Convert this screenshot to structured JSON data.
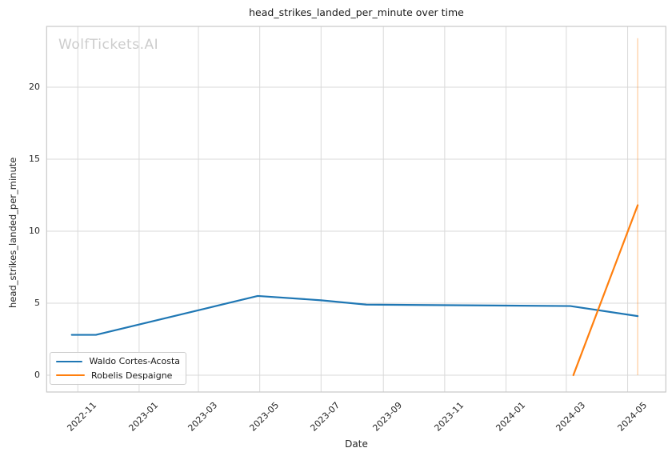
{
  "watermark": "WolfTickets.AI",
  "chart_data": {
    "type": "line",
    "title": "head_strikes_landed_per_minute over time",
    "xlabel": "Date",
    "ylabel": "head_strikes_landed_per_minute",
    "grid": true,
    "legend_position": "lower left",
    "x_ticks": [
      {
        "date": "2022-11-01",
        "label": "2022-11"
      },
      {
        "date": "2023-01-01",
        "label": "2023-01"
      },
      {
        "date": "2023-03-01",
        "label": "2023-03"
      },
      {
        "date": "2023-05-01",
        "label": "2023-05"
      },
      {
        "date": "2023-07-01",
        "label": "2023-07"
      },
      {
        "date": "2023-09-01",
        "label": "2023-09"
      },
      {
        "date": "2023-11-01",
        "label": "2023-11"
      },
      {
        "date": "2024-01-01",
        "label": "2024-01"
      },
      {
        "date": "2024-03-01",
        "label": "2024-03"
      },
      {
        "date": "2024-05-01",
        "label": "2024-05"
      }
    ],
    "y_ticks": [
      0,
      5,
      10,
      15,
      20
    ],
    "xlim": [
      "2022-10-01",
      "2024-06-08"
    ],
    "ylim": [
      -1.17,
      24.22
    ],
    "series": [
      {
        "name": "Waldo Cortes-Acosta",
        "color": "#1f77b4",
        "points": [
          {
            "date": "2022-10-26",
            "value": 2.8
          },
          {
            "date": "2022-11-19",
            "value": 2.8
          },
          {
            "date": "2023-04-29",
            "value": 5.5
          },
          {
            "date": "2023-07-01",
            "value": 5.2
          },
          {
            "date": "2023-08-15",
            "value": 4.9
          },
          {
            "date": "2024-03-05",
            "value": 4.8
          },
          {
            "date": "2024-05-11",
            "value": 4.1
          }
        ]
      },
      {
        "name": "Robelis Despaigne",
        "color": "#ff7f0e",
        "points": [
          {
            "date": "2024-03-08",
            "value": 0.0
          },
          {
            "date": "2024-05-11",
            "value": 11.8
          }
        ]
      }
    ],
    "event_line": {
      "date": "2024-05-11",
      "from": 0.0,
      "to": 23.4,
      "color": "#ff7f0e",
      "opacity": 0.3
    },
    "colors": {
      "grid": "#d9d9d9",
      "spine": "#c9c9c9",
      "text": "#262626",
      "watermark": "#cccccc"
    }
  }
}
